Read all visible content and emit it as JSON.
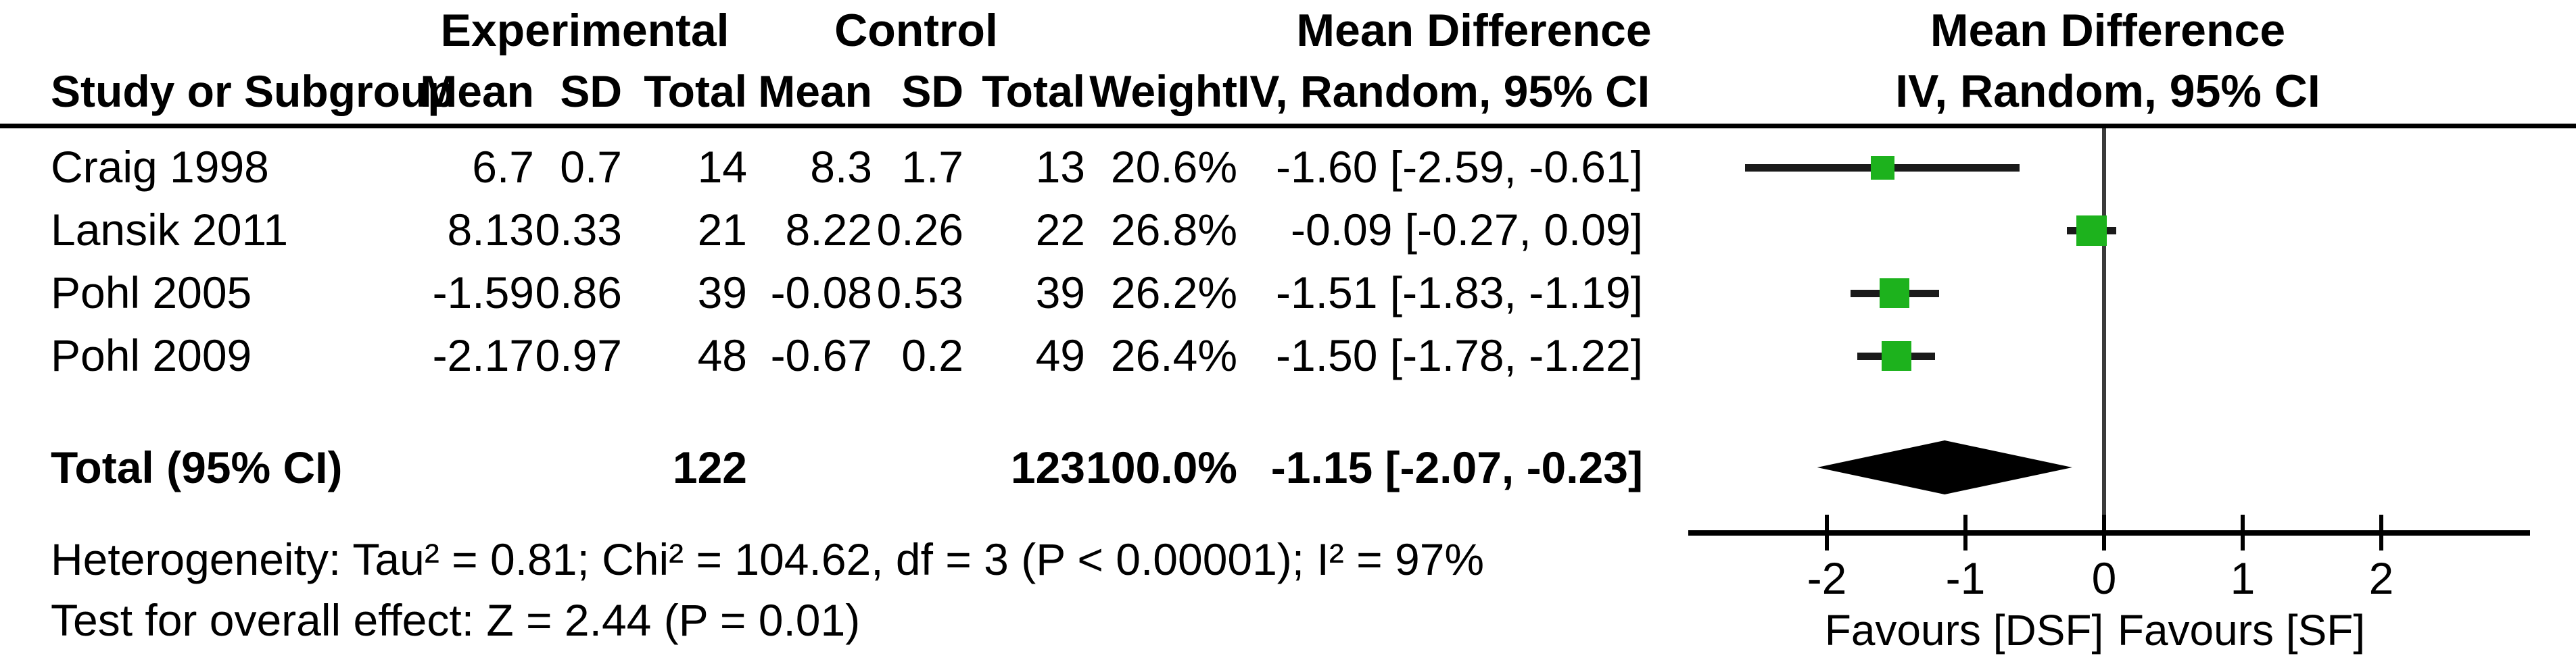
{
  "table": {
    "header1": {
      "experimental": "Experimental",
      "control": "Control",
      "md_left": "Mean Difference",
      "md_right": "Mean Difference"
    },
    "header2": {
      "study": "Study or Subgroup",
      "mean1": "Mean",
      "sd1": "SD",
      "total1": "Total",
      "mean2": "Mean",
      "sd2": "SD",
      "total2": "Total",
      "weight": "Weight",
      "iv_left": "IV, Random, 95% CI",
      "iv_right": "IV, Random, 95% CI"
    },
    "rows": [
      {
        "study": "Craig 1998",
        "m1": "6.7",
        "sd1": "0.7",
        "t1": "14",
        "m2": "8.3",
        "sd2": "1.7",
        "t2": "13",
        "w": "20.6%",
        "ci": "-1.60 [-2.59, -0.61]"
      },
      {
        "study": "Lansik 2011",
        "m1": "8.13",
        "sd1": "0.33",
        "t1": "21",
        "m2": "8.22",
        "sd2": "0.26",
        "t2": "22",
        "w": "26.8%",
        "ci": "-0.09 [-0.27, 0.09]"
      },
      {
        "study": "Pohl 2005",
        "m1": "-1.59",
        "sd1": "0.86",
        "t1": "39",
        "m2": "-0.08",
        "sd2": "0.53",
        "t2": "39",
        "w": "26.2%",
        "ci": "-1.51 [-1.83, -1.19]"
      },
      {
        "study": "Pohl 2009",
        "m1": "-2.17",
        "sd1": "0.97",
        "t1": "48",
        "m2": "-0.67",
        "sd2": "0.2",
        "t2": "49",
        "w": "26.4%",
        "ci": "-1.50 [-1.78, -1.22]"
      }
    ],
    "total_row": {
      "study": "Total (95% CI)",
      "t1": "122",
      "t2": "123",
      "w": "100.0%",
      "ci": "-1.15 [-2.07, -0.23]"
    },
    "footer": {
      "heterogeneity": "Heterogeneity: Tau² = 0.81; Chi² = 104.62, df = 3 (P < 0.00001); I² = 97%",
      "overall_effect": "Test for overall effect: Z = 2.44 (P = 0.01)"
    }
  },
  "chart_data": {
    "type": "scatter",
    "subtype": "forest-plot",
    "effect_measure": "Mean Difference",
    "model": "IV, Random, 95% CI",
    "studies": [
      {
        "name": "Craig 1998",
        "exp_mean": 6.7,
        "exp_sd": 0.7,
        "exp_total": 14,
        "ctl_mean": 8.3,
        "ctl_sd": 1.7,
        "ctl_total": 13,
        "weight_pct": 20.6,
        "md": -1.6,
        "ci_low": -2.59,
        "ci_high": -0.61
      },
      {
        "name": "Lansik 2011",
        "exp_mean": 8.13,
        "exp_sd": 0.33,
        "exp_total": 21,
        "ctl_mean": 8.22,
        "ctl_sd": 0.26,
        "ctl_total": 22,
        "weight_pct": 26.8,
        "md": -0.09,
        "ci_low": -0.27,
        "ci_high": 0.09
      },
      {
        "name": "Pohl 2005",
        "exp_mean": -1.59,
        "exp_sd": 0.86,
        "exp_total": 39,
        "ctl_mean": -0.08,
        "ctl_sd": 0.53,
        "ctl_total": 39,
        "weight_pct": 26.2,
        "md": -1.51,
        "ci_low": -1.83,
        "ci_high": -1.19
      },
      {
        "name": "Pohl 2009",
        "exp_mean": -2.17,
        "exp_sd": 0.97,
        "exp_total": 48,
        "ctl_mean": -0.67,
        "ctl_sd": 0.2,
        "ctl_total": 49,
        "weight_pct": 26.4,
        "md": -1.5,
        "ci_low": -1.78,
        "ci_high": -1.22
      }
    ],
    "total": {
      "exp_total": 122,
      "ctl_total": 123,
      "weight_pct": 100.0,
      "md": -1.15,
      "ci_low": -2.07,
      "ci_high": -0.23
    },
    "x_ticks": [
      -2,
      -1,
      0,
      1,
      2
    ],
    "x_tick_labels": [
      "-2",
      "-1",
      "0",
      "1",
      "2"
    ],
    "x_axis_range": [
      -3,
      3
    ],
    "favours_left": "Favours [DSF]",
    "favours_right": "Favours [SF]",
    "marker_color": "#1db21d",
    "ci_line_color": "#1a1a1a",
    "diamond_color": "#000000",
    "grid": false,
    "legend": false
  }
}
